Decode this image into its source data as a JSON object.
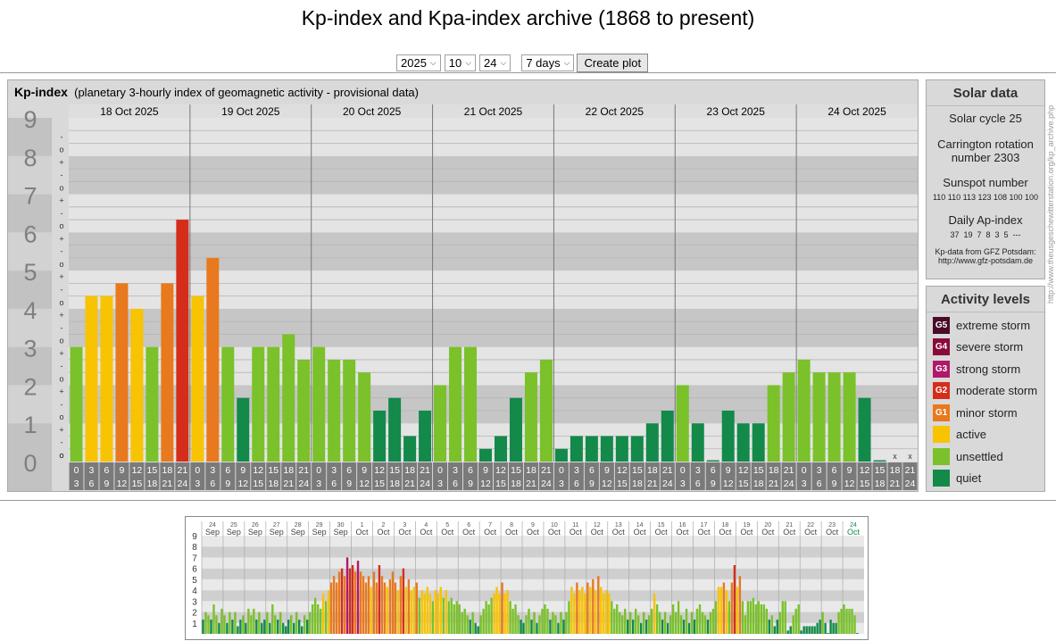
{
  "page": {
    "title": "Kp-index and Kpa-index archive (1868 to present)"
  },
  "controls": {
    "year": "2025",
    "month": "10",
    "day": "24",
    "range": "7 days",
    "button": "Create plot"
  },
  "kp_panel": {
    "label": "Kp-index",
    "subtitle": "(planetary 3-hourly index of geomagnetic activity - provisional data)"
  },
  "solar": {
    "title": "Solar data",
    "cycle": "Solar cycle 25",
    "carrington_1": "Carrington rotation",
    "carrington_2": "number 2303",
    "sunspot_title": "Sunspot number",
    "sunspot_values": "110 110 113 123 108 100 100",
    "ap_title": "Daily Ap-index",
    "ap_values": "37  19  7  8  3  5  ---",
    "source_1": "Kp-data from GFZ Potsdam:",
    "source_2": "http://www.gfz-potsdam.de"
  },
  "activity": {
    "title": "Activity levels",
    "items": [
      {
        "badge": "G5",
        "label": "extreme storm",
        "color": "#4a0a2a"
      },
      {
        "badge": "G4",
        "label": "severe storm",
        "color": "#8a0a3a"
      },
      {
        "badge": "G3",
        "label": "strong storm",
        "color": "#b0186a"
      },
      {
        "badge": "G2",
        "label": "moderate storm",
        "color": "#d42e1a"
      },
      {
        "badge": "G1",
        "label": "minor storm",
        "color": "#e8791e"
      },
      {
        "badge": "",
        "label": "active",
        "color": "#f8c300"
      },
      {
        "badge": "",
        "label": "unsettled",
        "color": "#7ac12a"
      },
      {
        "badge": "",
        "label": "quiet",
        "color": "#13894a"
      }
    ]
  },
  "vertical_url": "http://www.theusgeschewitterstation.org/kp_archive.php",
  "chart_data": [
    {
      "type": "bar",
      "ylim": [
        0,
        9
      ],
      "y_ticks": [
        "0",
        "1",
        "2",
        "3",
        "4",
        "5",
        "6",
        "7",
        "8",
        "9"
      ],
      "minor_marks": [
        "o",
        "-",
        "+"
      ],
      "days": [
        "18 Oct 2025",
        "19 Oct 2025",
        "20 Oct 2025",
        "21 Oct 2025",
        "22 Oct 2025",
        "23 Oct 2025",
        "24 Oct 2025"
      ],
      "interval_top": [
        "0",
        "3",
        "6",
        "9",
        "12",
        "15",
        "18",
        "21"
      ],
      "interval_bottom": [
        "3",
        "6",
        "9",
        "12",
        "15",
        "18",
        "21",
        "24"
      ],
      "missing_mark": "x",
      "values": [
        3.0,
        4.333,
        4.333,
        4.667,
        4.0,
        3.0,
        4.667,
        6.333,
        4.333,
        5.333,
        3.0,
        1.667,
        3.0,
        3.0,
        3.333,
        2.667,
        3.0,
        2.667,
        2.667,
        2.333,
        1.333,
        1.667,
        0.667,
        1.333,
        2.0,
        3.0,
        3.0,
        0.333,
        0.667,
        1.667,
        2.333,
        2.667,
        0.333,
        0.667,
        0.667,
        0.667,
        0.667,
        0.667,
        1.0,
        1.333,
        2.0,
        1.0,
        0.0,
        1.333,
        1.0,
        1.0,
        2.0,
        2.333,
        2.667,
        2.333,
        2.333,
        2.333,
        1.667,
        0.0,
        null,
        null
      ],
      "colors": {
        "quiet": "#13894a",
        "unsettled": "#7ac12a",
        "active": "#f8c300",
        "g1": "#e8791e",
        "g2": "#d42e1a"
      }
    },
    {
      "type": "bar",
      "ylim": [
        0,
        9
      ],
      "y_ticks": [
        "1",
        "2",
        "3",
        "4",
        "5",
        "6",
        "7",
        "8",
        "9"
      ],
      "days": [
        {
          "d": "24",
          "m": "Sep"
        },
        {
          "d": "25",
          "m": "Sep"
        },
        {
          "d": "26",
          "m": "Sep"
        },
        {
          "d": "27",
          "m": "Sep"
        },
        {
          "d": "28",
          "m": "Sep"
        },
        {
          "d": "29",
          "m": "Sep"
        },
        {
          "d": "30",
          "m": "Sep"
        },
        {
          "d": "1",
          "m": "Oct"
        },
        {
          "d": "2",
          "m": "Oct"
        },
        {
          "d": "3",
          "m": "Oct"
        },
        {
          "d": "4",
          "m": "Oct"
        },
        {
          "d": "5",
          "m": "Oct"
        },
        {
          "d": "6",
          "m": "Oct"
        },
        {
          "d": "7",
          "m": "Oct"
        },
        {
          "d": "8",
          "m": "Oct"
        },
        {
          "d": "9",
          "m": "Oct"
        },
        {
          "d": "10",
          "m": "Oct"
        },
        {
          "d": "11",
          "m": "Oct"
        },
        {
          "d": "12",
          "m": "Oct"
        },
        {
          "d": "13",
          "m": "Oct"
        },
        {
          "d": "14",
          "m": "Oct"
        },
        {
          "d": "15",
          "m": "Oct"
        },
        {
          "d": "16",
          "m": "Oct"
        },
        {
          "d": "17",
          "m": "Oct"
        },
        {
          "d": "18",
          "m": "Oct"
        },
        {
          "d": "19",
          "m": "Oct"
        },
        {
          "d": "20",
          "m": "Oct"
        },
        {
          "d": "21",
          "m": "Oct"
        },
        {
          "d": "22",
          "m": "Oct"
        },
        {
          "d": "23",
          "m": "Oct"
        },
        {
          "d": "24",
          "m": "Oct"
        }
      ],
      "current_day_color": "#13894a",
      "values": [
        1.3,
        2.0,
        1.7,
        1.3,
        2.7,
        1.7,
        1.0,
        2.3,
        1.7,
        1.0,
        2.0,
        1.3,
        2.0,
        0.7,
        1.3,
        1.7,
        1.0,
        2.3,
        1.7,
        2.3,
        1.3,
        2.0,
        1.0,
        1.3,
        2.0,
        1.0,
        2.7,
        1.7,
        1.3,
        2.0,
        1.0,
        0.7,
        1.3,
        1.7,
        1.0,
        2.0,
        1.3,
        0.7,
        1.7,
        1.3,
        2.0,
        2.7,
        3.3,
        2.7,
        2.3,
        3.7,
        3.0,
        4.0,
        4.7,
        5.3,
        4.7,
        5.7,
        6.0,
        5.3,
        7.0,
        6.0,
        6.3,
        5.7,
        6.7,
        5.7,
        5.3,
        4.7,
        5.3,
        4.3,
        5.7,
        4.7,
        6.3,
        5.3,
        4.7,
        4.3,
        5.0,
        5.7,
        4.7,
        4.0,
        5.3,
        6.0,
        4.3,
        5.0,
        4.0,
        4.3,
        4.7,
        3.3,
        4.0,
        3.7,
        4.3,
        3.7,
        3.0,
        4.0,
        3.7,
        4.3,
        3.3,
        4.0,
        3.0,
        3.3,
        2.7,
        3.0,
        2.7,
        2.0,
        2.3,
        1.7,
        1.3,
        2.0,
        1.0,
        0.7,
        1.7,
        2.3,
        3.0,
        2.7,
        3.3,
        3.7,
        4.3,
        3.7,
        4.7,
        3.7,
        4.0,
        3.0,
        2.3,
        2.7,
        1.7,
        1.3,
        1.0,
        1.7,
        2.3,
        1.3,
        2.0,
        1.0,
        1.7,
        2.3,
        2.7,
        2.3,
        1.3,
        2.0,
        1.7,
        1.0,
        2.0,
        1.3,
        2.0,
        3.0,
        4.3,
        3.7,
        4.7,
        4.0,
        4.3,
        3.7,
        4.7,
        4.3,
        5.0,
        4.0,
        5.3,
        4.3,
        3.7,
        4.0,
        3.7,
        3.0,
        2.3,
        2.7,
        2.0,
        1.7,
        2.3,
        1.3,
        2.0,
        1.3,
        2.3,
        1.7,
        1.0,
        2.0,
        1.3,
        1.7,
        2.3,
        3.7,
        2.7,
        2.0,
        1.3,
        2.0,
        1.0,
        1.7,
        2.7,
        2.0,
        3.0,
        1.7,
        1.3,
        2.3,
        1.0,
        2.0,
        1.3,
        2.3,
        2.7,
        2.0,
        1.7,
        1.3,
        2.0,
        2.3,
        3.0,
        4.3,
        4.3,
        4.7,
        4.0,
        3.0,
        4.7,
        6.3,
        4.3,
        5.3,
        3.0,
        1.7,
        3.0,
        3.0,
        3.3,
        2.7,
        3.0,
        2.7,
        2.7,
        2.3,
        1.3,
        1.7,
        0.7,
        1.3,
        2.0,
        3.0,
        3.0,
        0.3,
        0.7,
        1.7,
        2.3,
        2.7,
        0.3,
        0.7,
        0.7,
        0.7,
        0.7,
        0.7,
        1.0,
        1.3,
        2.0,
        1.0,
        0.0,
        1.3,
        1.0,
        1.0,
        2.0,
        2.3,
        2.7,
        2.3,
        2.3,
        2.3,
        1.7,
        0.0
      ]
    }
  ]
}
